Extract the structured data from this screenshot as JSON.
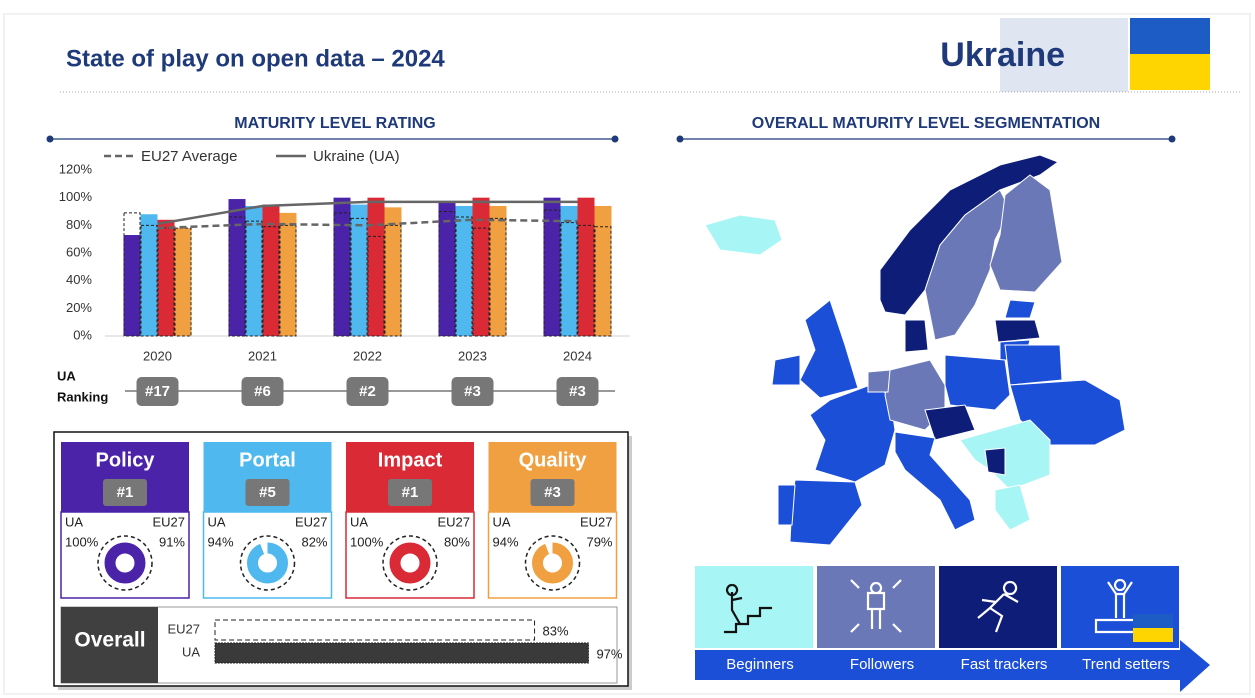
{
  "header": {
    "title": "State of play on open data – 2024",
    "country": "Ukraine"
  },
  "chart_data": [
    {
      "type": "bar",
      "title": "MATURITY LEVEL RATING",
      "categories": [
        "2020",
        "2021",
        "2022",
        "2023",
        "2024"
      ],
      "series": [
        {
          "color": "#4b23a8",
          "values": [
            73,
            99,
            100,
            97,
            100
          ],
          "eu27_values": [
            89,
            86,
            89,
            90,
            91
          ]
        },
        {
          "color": "#4fb8ef",
          "values": [
            88,
            94,
            95,
            94,
            94
          ],
          "eu27_values": [
            80,
            83,
            85,
            86,
            82
          ]
        },
        {
          "color": "#d92a36",
          "values": [
            84,
            95,
            100,
            100,
            100
          ],
          "eu27_values": [
            78,
            79,
            72,
            78,
            80
          ]
        },
        {
          "color": "#f0a040",
          "values": [
            78,
            89,
            93,
            94,
            94
          ],
          "eu27_values": [
            78,
            80,
            80,
            85,
            79
          ]
        }
      ],
      "lines": [
        {
          "name": "EU27 Average",
          "color": "#666666",
          "dashed": true,
          "values": [
            78,
            81,
            80,
            84,
            83
          ]
        },
        {
          "name": "Ukraine (UA)",
          "color": "#666666",
          "dashed": false,
          "values": [
            81,
            94,
            97,
            97,
            97
          ]
        }
      ],
      "ylim": [
        0,
        120
      ],
      "yticks": [
        {
          "value": 0,
          "label": "0%"
        },
        {
          "value": 20,
          "label": "20%"
        },
        {
          "value": 40,
          "label": "40%"
        },
        {
          "value": 60,
          "label": "60%"
        },
        {
          "value": 80,
          "label": "80%"
        },
        {
          "value": 100,
          "label": "100%"
        },
        {
          "value": 120,
          "label": "120%"
        }
      ],
      "ranking_label": [
        "UA",
        "Ranking"
      ],
      "rankings": [
        "#17",
        "#6",
        "#2",
        "#3",
        "#3"
      ]
    },
    {
      "type": "donut-cards",
      "cards": [
        {
          "name": "Policy",
          "color": "#4b23a8",
          "rank": "#1",
          "labels": [
            "UA",
            "EU27"
          ],
          "values": [
            100,
            91
          ],
          "value_labels": [
            "100%",
            "91%"
          ]
        },
        {
          "name": "Portal",
          "color": "#4fb8ef",
          "rank": "#5",
          "labels": [
            "UA",
            "EU27"
          ],
          "values": [
            94,
            82
          ],
          "value_labels": [
            "94%",
            "82%"
          ]
        },
        {
          "name": "Impact",
          "color": "#d92a36",
          "rank": "#1",
          "labels": [
            "UA",
            "EU27"
          ],
          "values": [
            100,
            80
          ],
          "value_labels": [
            "100%",
            "80%"
          ]
        },
        {
          "name": "Quality",
          "color": "#f0a040",
          "rank": "#3",
          "labels": [
            "UA",
            "EU27"
          ],
          "values": [
            94,
            79
          ],
          "value_labels": [
            "94%",
            "79%"
          ]
        }
      ]
    },
    {
      "type": "hbar",
      "title": "Overall",
      "categories": [
        "EU27",
        "UA"
      ],
      "values": [
        83,
        97
      ],
      "value_labels": [
        "83%",
        "97%"
      ]
    },
    {
      "type": "map",
      "title": "OVERALL MATURITY LEVEL SEGMENTATION",
      "legend": [
        {
          "name": "Beginners",
          "color": "#a8f5f5"
        },
        {
          "name": "Followers",
          "color": "#6a78b8"
        },
        {
          "name": "Fast trackers",
          "color": "#0e1e78"
        },
        {
          "name": "Trend setters",
          "color": "#1c4fd8"
        }
      ]
    }
  ]
}
